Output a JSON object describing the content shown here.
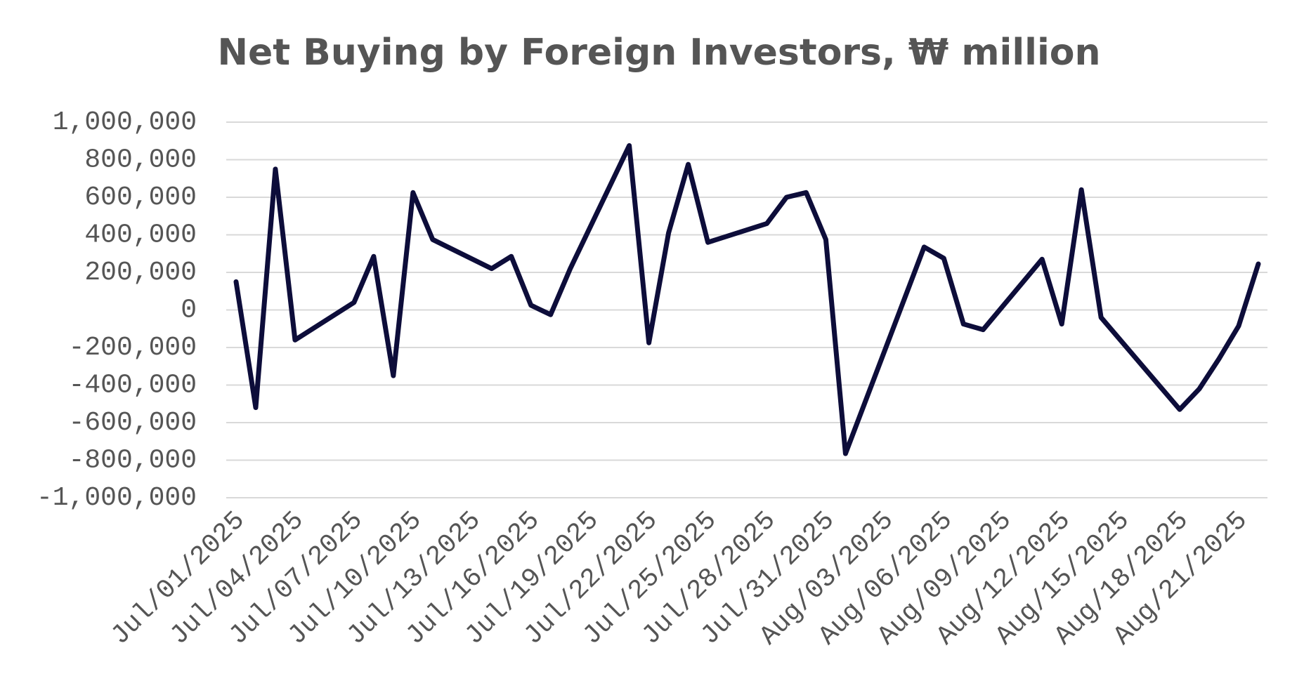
{
  "chart_data": {
    "type": "line",
    "title": "Net Buying by Foreign Investors, ₩ million",
    "x": [
      "Jul/01/2025",
      "Jul/02/2025",
      "Jul/03/2025",
      "Jul/04/2025",
      "Jul/07/2025",
      "Jul/08/2025",
      "Jul/09/2025",
      "Jul/10/2025",
      "Jul/11/2025",
      "Jul/14/2025",
      "Jul/15/2025",
      "Jul/16/2025",
      "Jul/17/2025",
      "Jul/18/2025",
      "Jul/21/2025",
      "Jul/22/2025",
      "Jul/23/2025",
      "Jul/24/2025",
      "Jul/25/2025",
      "Jul/28/2025",
      "Jul/29/2025",
      "Jul/30/2025",
      "Jul/31/2025",
      "Aug/01/2025",
      "Aug/04/2025",
      "Aug/05/2025",
      "Aug/06/2025",
      "Aug/07/2025",
      "Aug/08/2025",
      "Aug/11/2025",
      "Aug/12/2025",
      "Aug/13/2025",
      "Aug/14/2025",
      "Aug/18/2025",
      "Aug/19/2025",
      "Aug/20/2025",
      "Aug/21/2025",
      "Aug/22/2025"
    ],
    "series": [
      {
        "name": "Net Buying",
        "color": "#0d0d3a",
        "values": [
          150000,
          -520000,
          750000,
          -160000,
          40000,
          285000,
          -350000,
          625000,
          375000,
          220000,
          285000,
          25000,
          -25000,
          220000,
          875000,
          -175000,
          410000,
          775000,
          360000,
          460000,
          600000,
          625000,
          375000,
          -765000,
          60000,
          335000,
          275000,
          -75000,
          -105000,
          270000,
          -75000,
          640000,
          -40000,
          -530000,
          -420000,
          -260000,
          -85000,
          245000
        ]
      }
    ],
    "xticks": [
      "Jul/01/2025",
      "Jul/04/2025",
      "Jul/07/2025",
      "Jul/10/2025",
      "Jul/13/2025",
      "Jul/16/2025",
      "Jul/19/2025",
      "Jul/22/2025",
      "Jul/25/2025",
      "Jul/28/2025",
      "Jul/31/2025",
      "Aug/03/2025",
      "Aug/06/2025",
      "Aug/09/2025",
      "Aug/12/2025",
      "Aug/15/2025",
      "Aug/18/2025",
      "Aug/21/2025"
    ],
    "xlim": [
      "Jul/01/2025",
      "Aug/22/2025"
    ],
    "ylim": [
      -1000000,
      1000000
    ],
    "yticks": [
      {
        "value": -1000000,
        "label": "-1,000,000"
      },
      {
        "value": -800000,
        "label": "-800,000"
      },
      {
        "value": -600000,
        "label": "-600,000"
      },
      {
        "value": -400000,
        "label": "-400,000"
      },
      {
        "value": -200000,
        "label": "-200,000"
      },
      0,
      {
        "value": 200000,
        "label": "200,000"
      },
      {
        "value": 400000,
        "label": "400,000"
      },
      {
        "value": 600000,
        "label": "600,000"
      },
      {
        "value": 800000,
        "label": "800,000"
      },
      {
        "value": 1000000,
        "label": "1,000,000"
      }
    ],
    "grid": true
  }
}
